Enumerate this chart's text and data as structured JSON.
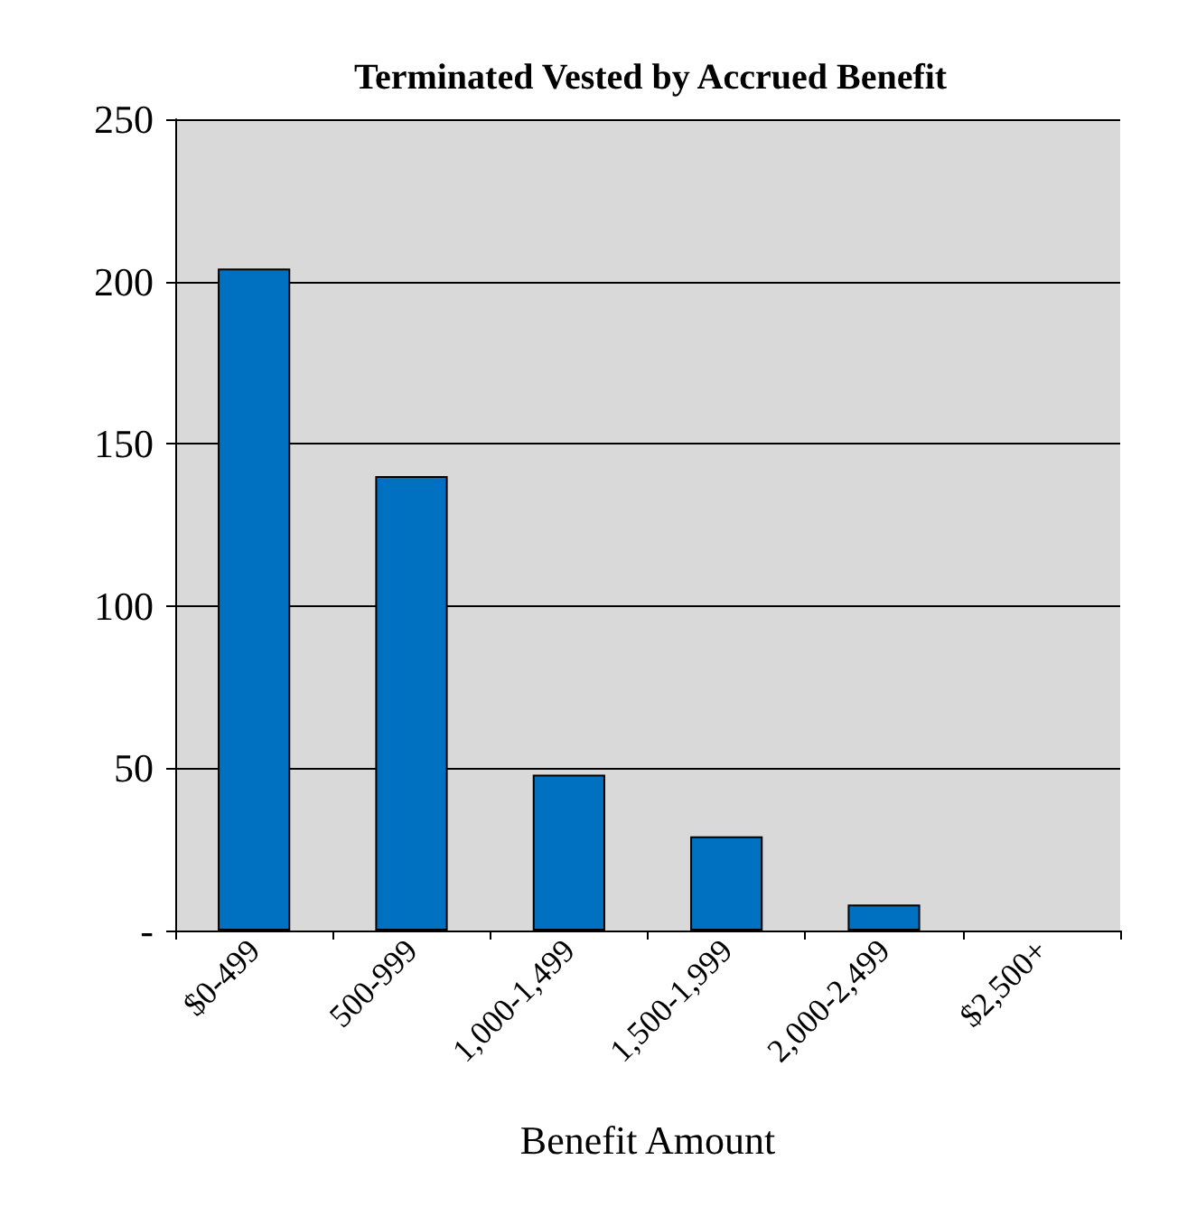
{
  "chart_data": {
    "type": "bar",
    "title": "Terminated Vested by Accrued Benefit",
    "xlabel": "Benefit Amount",
    "categories": [
      "$0-499",
      "500-999",
      "1,000-1,499",
      "1,500-1,999",
      "2,000-2,499",
      "$2,500+"
    ],
    "values": [
      204,
      140,
      48,
      29,
      8,
      0
    ],
    "color": "#0070c0",
    "ylim": [
      0,
      250
    ],
    "yticks": [
      {
        "value": 0,
        "label": "-"
      },
      50,
      100,
      150,
      200,
      250
    ],
    "grid": "y"
  }
}
